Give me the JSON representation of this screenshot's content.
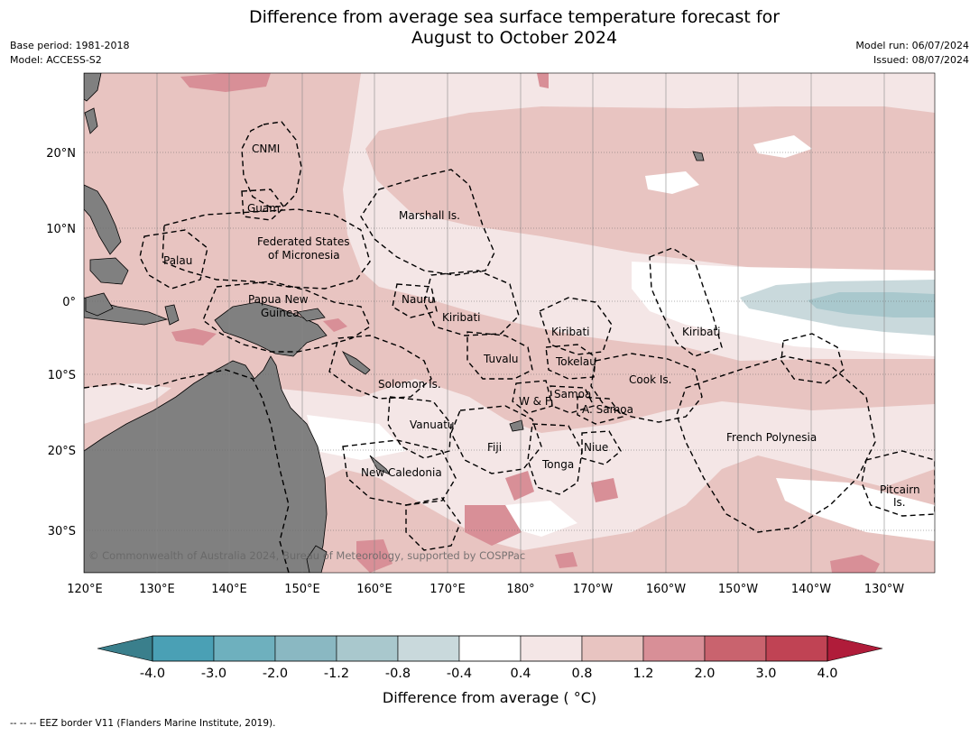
{
  "title": {
    "line1": "Difference from average sea surface temperature forecast for",
    "line2": "August to October 2024"
  },
  "meta": {
    "base_period": "Base period: 1981-2018",
    "model": "Model: ACCESS-S2",
    "model_run": "Model run: 06/07/2024",
    "issued": "Issued: 08/07/2024"
  },
  "map": {
    "lat_labels": [
      "20°N",
      "10°N",
      "0°",
      "10°S",
      "20°S",
      "30°S"
    ],
    "lon_labels": [
      "120°E",
      "130°E",
      "140°E",
      "150°E",
      "160°E",
      "170°E",
      "180°",
      "170°W",
      "160°W",
      "150°W",
      "140°W",
      "130°W"
    ],
    "land_color": "#808080",
    "copyright": "© Commonwealth of Australia 2024, Bureau of Meteorology, supported by COSPPac",
    "regions": {
      "cnmi": "CNMI",
      "guam": "Guam",
      "palau": "Palau",
      "fsm_1": "Federated States",
      "fsm_2": "of Micronesia",
      "marshall": "Marshall Is.",
      "nauru": "Nauru",
      "kiribati_w": "Kiribati",
      "kiribati_c": "Kiribati",
      "kiribati_e": "Kiribati",
      "png_1": "Papua New",
      "png_2": "Guinea",
      "tuvalu": "Tuvalu",
      "tokelau": "Tokelau",
      "solomon": "Solomon Is.",
      "wf": "W & F",
      "samoa": "Samoa",
      "asamoa": "A. Samoa",
      "cook": "Cook Is.",
      "vanuatu": "Vanuatu",
      "fiji": "Fiji",
      "niue": "Niue",
      "tonga": "Tonga",
      "frpoly": "French Polynesia",
      "newcal": "New Caledonia",
      "pitcairn_1": "Pitcairn",
      "pitcairn_2": "Is."
    }
  },
  "colorbar": {
    "title": "Difference from average ( °C)",
    "ticks": [
      "-4.0",
      "-3.0",
      "-2.0",
      "-1.2",
      "-0.8",
      "-0.4",
      "0.4",
      "0.8",
      "1.2",
      "2.0",
      "3.0",
      "4.0"
    ],
    "colors": [
      "#3a7f8c",
      "#4aa0b5",
      "#6eb0be",
      "#8ab8c2",
      "#a9c8cd",
      "#c9d9dc",
      "#ffffff",
      "#f4e6e6",
      "#e8c4c1",
      "#d88f97",
      "#c9636e",
      "#c04354",
      "#b01c3a"
    ]
  },
  "footer": "--  --  -- EEZ border V11 (Flanders Marine Institute, 2019)."
}
